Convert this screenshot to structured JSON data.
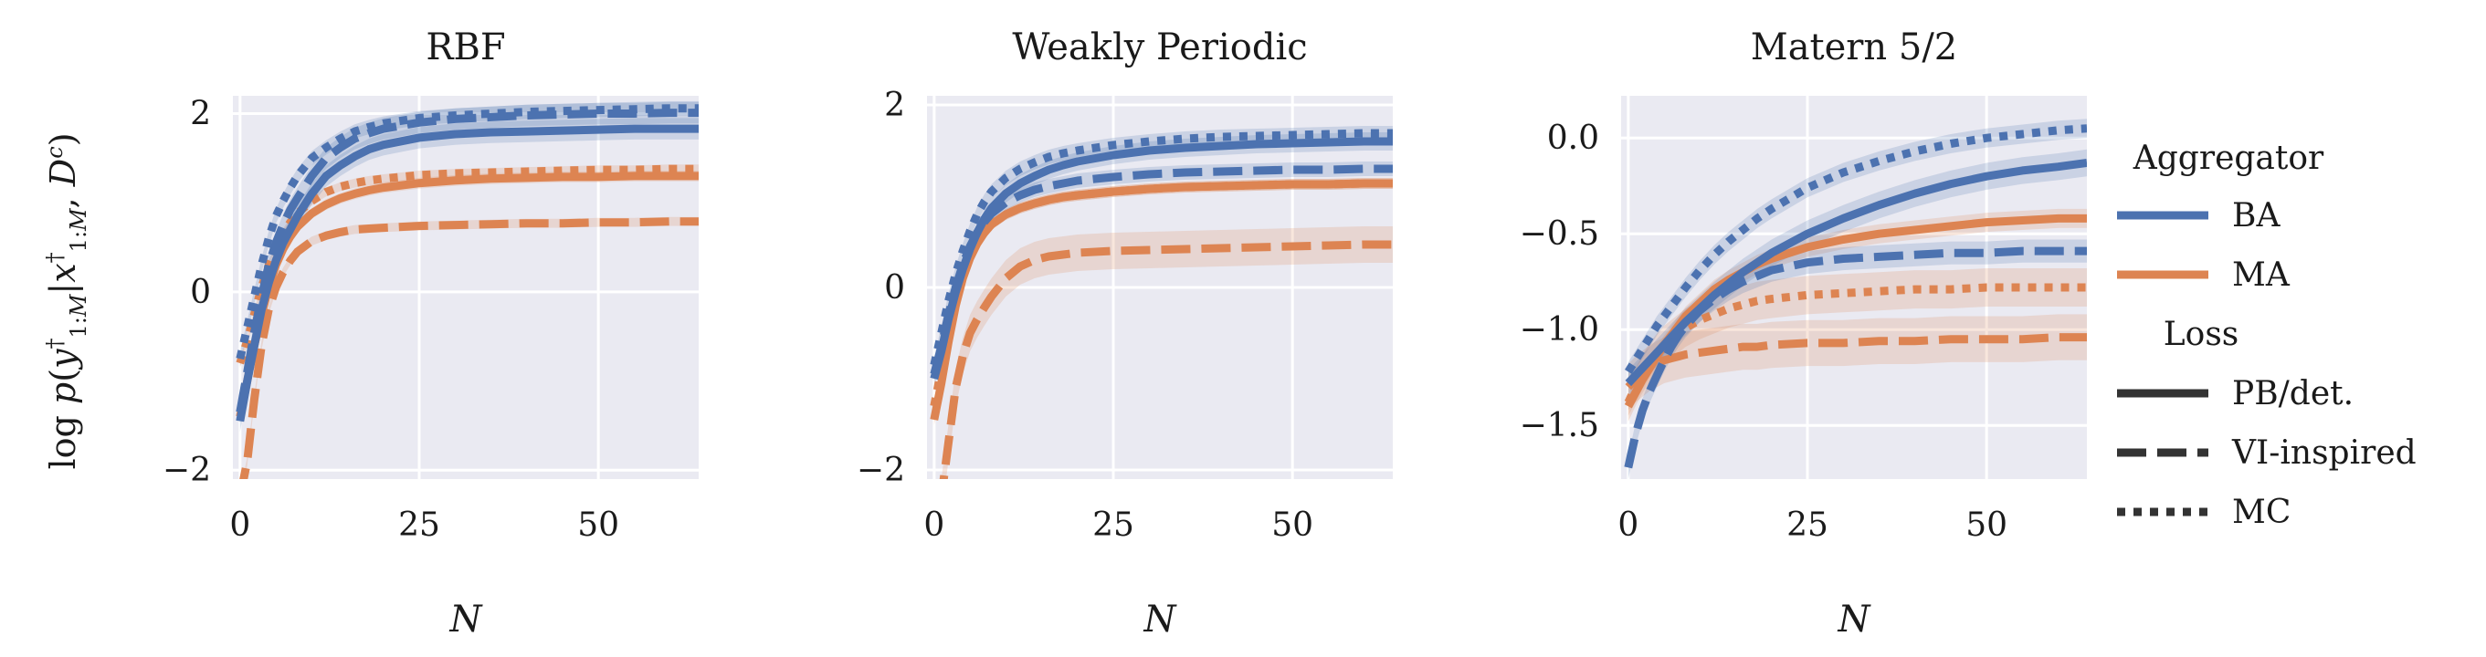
{
  "legend": {
    "hue_title": "Aggregator",
    "hue_entries": [
      {
        "label": "BA",
        "color": "#4c72b0"
      },
      {
        "label": "MA",
        "color": "#dd8452"
      }
    ],
    "style_title": "Loss",
    "style_entries": [
      {
        "label": "PB/det.",
        "dash": "solid"
      },
      {
        "label": "VI-inspired",
        "dash": "dashed"
      },
      {
        "label": "MC",
        "dash": "dotted"
      }
    ]
  },
  "shared_ylabel": "log p(y† 1:M | x† 1:M, Dᶜ)",
  "chart_data": [
    {
      "type": "line",
      "title": "RBF",
      "xlabel": "N",
      "ylabel": "",
      "xlim": [
        -1,
        64
      ],
      "ylim": [
        -2.1,
        2.2
      ],
      "xticks": [
        0,
        25,
        50
      ],
      "yticks": [
        -2,
        0,
        2
      ],
      "grid": true,
      "x": [
        0,
        1,
        2,
        3,
        4,
        5,
        6,
        7,
        8,
        10,
        12,
        14,
        16,
        18,
        20,
        25,
        30,
        35,
        40,
        45,
        50,
        55,
        60,
        64
      ],
      "series": [
        {
          "aggregator": "BA",
          "loss": "PB/det.",
          "band": 0.12,
          "values": [
            -1.45,
            -1.0,
            -0.6,
            -0.2,
            0.1,
            0.35,
            0.55,
            0.7,
            0.85,
            1.1,
            1.3,
            1.42,
            1.52,
            1.6,
            1.65,
            1.73,
            1.77,
            1.79,
            1.8,
            1.81,
            1.82,
            1.83,
            1.83,
            1.83
          ]
        },
        {
          "aggregator": "BA",
          "loss": "VI-inspired",
          "band": 0.12,
          "values": [
            -1.35,
            -0.9,
            -0.45,
            -0.05,
            0.3,
            0.55,
            0.75,
            0.92,
            1.05,
            1.3,
            1.5,
            1.62,
            1.72,
            1.78,
            1.83,
            1.9,
            1.94,
            1.96,
            1.98,
            1.99,
            2.0,
            2.0,
            2.01,
            2.01
          ]
        },
        {
          "aggregator": "BA",
          "loss": "MC",
          "band": 0.08,
          "values": [
            -0.75,
            -0.4,
            -0.05,
            0.3,
            0.6,
            0.85,
            1.02,
            1.17,
            1.3,
            1.5,
            1.62,
            1.72,
            1.8,
            1.85,
            1.89,
            1.95,
            1.98,
            2.0,
            2.02,
            2.03,
            2.04,
            2.05,
            2.06,
            2.06
          ]
        },
        {
          "aggregator": "MA",
          "loss": "PB/det.",
          "band": 0.06,
          "values": [
            -1.4,
            -1.0,
            -0.6,
            -0.25,
            0.05,
            0.3,
            0.48,
            0.62,
            0.73,
            0.88,
            0.98,
            1.05,
            1.1,
            1.14,
            1.17,
            1.22,
            1.25,
            1.27,
            1.28,
            1.29,
            1.29,
            1.3,
            1.3,
            1.3
          ]
        },
        {
          "aggregator": "MA",
          "loss": "VI-inspired",
          "band": 0.05,
          "values": [
            -2.3,
            -1.9,
            -1.2,
            -0.6,
            -0.2,
            0.05,
            0.22,
            0.35,
            0.45,
            0.57,
            0.63,
            0.67,
            0.7,
            0.71,
            0.72,
            0.74,
            0.75,
            0.76,
            0.77,
            0.77,
            0.78,
            0.78,
            0.79,
            0.79
          ]
        },
        {
          "aggregator": "MA",
          "loss": "MC",
          "band": 0.05,
          "values": [
            -0.8,
            -0.55,
            -0.25,
            0.05,
            0.3,
            0.5,
            0.66,
            0.78,
            0.88,
            1.02,
            1.12,
            1.18,
            1.22,
            1.25,
            1.27,
            1.31,
            1.33,
            1.34,
            1.35,
            1.36,
            1.37,
            1.37,
            1.38,
            1.38
          ]
        }
      ]
    },
    {
      "type": "line",
      "title": "Weakly Periodic",
      "xlabel": "N",
      "ylabel": "",
      "xlim": [
        -1,
        64
      ],
      "ylim": [
        -2.1,
        2.1
      ],
      "xticks": [
        0,
        25,
        50
      ],
      "yticks": [
        -2,
        0,
        2
      ],
      "grid": true,
      "x": [
        0,
        1,
        2,
        3,
        4,
        5,
        6,
        7,
        8,
        10,
        12,
        14,
        16,
        18,
        20,
        25,
        30,
        35,
        40,
        45,
        50,
        55,
        60,
        64
      ],
      "series": [
        {
          "aggregator": "BA",
          "loss": "PB/det.",
          "band": 0.1,
          "values": [
            -1.0,
            -0.7,
            -0.35,
            -0.05,
            0.2,
            0.42,
            0.6,
            0.75,
            0.87,
            1.03,
            1.14,
            1.22,
            1.29,
            1.34,
            1.38,
            1.45,
            1.5,
            1.53,
            1.55,
            1.57,
            1.58,
            1.59,
            1.6,
            1.6
          ]
        },
        {
          "aggregator": "BA",
          "loss": "VI-inspired",
          "band": 0.08,
          "values": [
            -0.95,
            -0.65,
            -0.3,
            0.0,
            0.25,
            0.45,
            0.6,
            0.72,
            0.81,
            0.93,
            1.01,
            1.07,
            1.11,
            1.14,
            1.17,
            1.21,
            1.24,
            1.26,
            1.27,
            1.28,
            1.29,
            1.29,
            1.3,
            1.3
          ]
        },
        {
          "aggregator": "BA",
          "loss": "MC",
          "band": 0.08,
          "values": [
            -0.85,
            -0.5,
            -0.15,
            0.15,
            0.4,
            0.62,
            0.8,
            0.94,
            1.05,
            1.2,
            1.3,
            1.37,
            1.43,
            1.47,
            1.5,
            1.56,
            1.6,
            1.63,
            1.65,
            1.66,
            1.67,
            1.68,
            1.69,
            1.69
          ]
        },
        {
          "aggregator": "MA",
          "loss": "PB/det.",
          "band": 0.06,
          "values": [
            -1.45,
            -1.05,
            -0.6,
            -0.2,
            0.1,
            0.32,
            0.48,
            0.6,
            0.69,
            0.8,
            0.87,
            0.92,
            0.96,
            0.99,
            1.01,
            1.05,
            1.08,
            1.1,
            1.11,
            1.12,
            1.13,
            1.13,
            1.14,
            1.14
          ]
        },
        {
          "aggregator": "MA",
          "loss": "VI-inspired",
          "band": 0.2,
          "values": [
            -2.3,
            -2.3,
            -1.7,
            -1.1,
            -0.75,
            -0.5,
            -0.35,
            -0.22,
            -0.1,
            0.1,
            0.23,
            0.3,
            0.34,
            0.36,
            0.38,
            0.4,
            0.41,
            0.42,
            0.43,
            0.44,
            0.45,
            0.46,
            0.47,
            0.47
          ]
        },
        {
          "aggregator": "MA",
          "loss": "MC",
          "band": 0.06,
          "values": [
            -1.3,
            -0.9,
            -0.5,
            -0.15,
            0.12,
            0.33,
            0.49,
            0.6,
            0.69,
            0.8,
            0.87,
            0.92,
            0.96,
            0.99,
            1.01,
            1.05,
            1.08,
            1.1,
            1.11,
            1.12,
            1.13,
            1.13,
            1.14,
            1.14
          ]
        }
      ]
    },
    {
      "type": "line",
      "title": "Matern 5/2",
      "xlabel": "N",
      "ylabel": "",
      "xlim": [
        -1,
        64
      ],
      "ylim": [
        -1.78,
        0.22
      ],
      "xticks": [
        0,
        25,
        50
      ],
      "yticks": [
        0.0,
        -0.5,
        -1.0,
        -1.5
      ],
      "ytick_labels": [
        "0.0",
        "−0.5",
        "−1.0",
        "−1.5"
      ],
      "grid": true,
      "x": [
        0,
        1,
        2,
        3,
        4,
        5,
        6,
        7,
        8,
        10,
        12,
        14,
        16,
        18,
        20,
        25,
        30,
        35,
        40,
        45,
        50,
        55,
        60,
        64
      ],
      "series": [
        {
          "aggregator": "BA",
          "loss": "PB/det.",
          "band": 0.07,
          "values": [
            -1.28,
            -1.24,
            -1.2,
            -1.16,
            -1.12,
            -1.08,
            -1.04,
            -1.0,
            -0.96,
            -0.89,
            -0.82,
            -0.76,
            -0.7,
            -0.65,
            -0.6,
            -0.5,
            -0.42,
            -0.35,
            -0.29,
            -0.24,
            -0.2,
            -0.17,
            -0.15,
            -0.13
          ]
        },
        {
          "aggregator": "BA",
          "loss": "VI-inspired",
          "band": 0.06,
          "values": [
            -1.72,
            -1.55,
            -1.42,
            -1.32,
            -1.24,
            -1.16,
            -1.09,
            -1.03,
            -0.98,
            -0.9,
            -0.84,
            -0.79,
            -0.75,
            -0.72,
            -0.69,
            -0.65,
            -0.63,
            -0.62,
            -0.61,
            -0.6,
            -0.6,
            -0.59,
            -0.59,
            -0.59
          ]
        },
        {
          "aggregator": "BA",
          "loss": "MC",
          "band": 0.05,
          "values": [
            -1.22,
            -1.16,
            -1.1,
            -1.04,
            -0.98,
            -0.93,
            -0.88,
            -0.83,
            -0.78,
            -0.69,
            -0.61,
            -0.54,
            -0.48,
            -0.42,
            -0.37,
            -0.26,
            -0.18,
            -0.12,
            -0.07,
            -0.03,
            0.0,
            0.02,
            0.04,
            0.05
          ]
        },
        {
          "aggregator": "MA",
          "loss": "PB/det.",
          "band": 0.05,
          "values": [
            -1.4,
            -1.33,
            -1.26,
            -1.2,
            -1.14,
            -1.08,
            -1.03,
            -0.98,
            -0.93,
            -0.86,
            -0.79,
            -0.74,
            -0.7,
            -0.66,
            -0.63,
            -0.57,
            -0.53,
            -0.5,
            -0.48,
            -0.46,
            -0.44,
            -0.43,
            -0.42,
            -0.42
          ]
        },
        {
          "aggregator": "MA",
          "loss": "VI-inspired",
          "band": 0.12,
          "values": [
            -1.3,
            -1.26,
            -1.23,
            -1.2,
            -1.18,
            -1.16,
            -1.15,
            -1.14,
            -1.13,
            -1.12,
            -1.11,
            -1.1,
            -1.09,
            -1.09,
            -1.08,
            -1.07,
            -1.07,
            -1.06,
            -1.06,
            -1.05,
            -1.05,
            -1.05,
            -1.04,
            -1.04
          ]
        },
        {
          "aggregator": "MA",
          "loss": "MC",
          "band": 0.1,
          "values": [
            -1.38,
            -1.3,
            -1.23,
            -1.17,
            -1.12,
            -1.08,
            -1.05,
            -1.02,
            -0.99,
            -0.95,
            -0.92,
            -0.89,
            -0.87,
            -0.85,
            -0.84,
            -0.82,
            -0.81,
            -0.8,
            -0.79,
            -0.79,
            -0.78,
            -0.78,
            -0.78,
            -0.78
          ]
        }
      ]
    }
  ]
}
